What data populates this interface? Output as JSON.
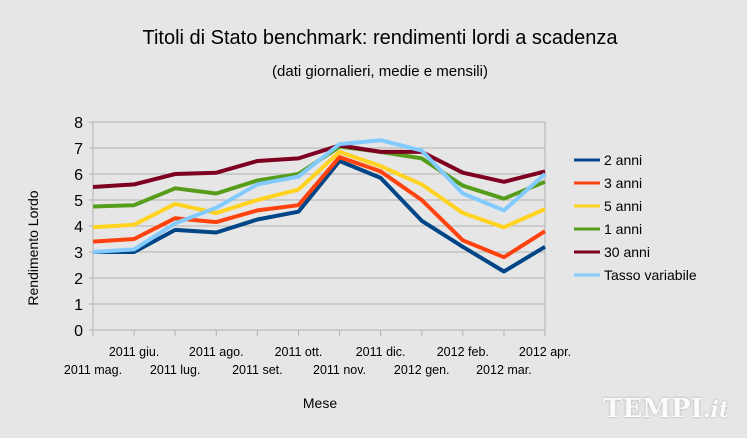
{
  "chart_data": {
    "type": "line",
    "title": "Titoli di Stato benchmark: rendimenti lordi a scadenza",
    "subtitle": "(dati giornalieri, medie e mensili)",
    "xlabel": "Mese",
    "ylabel": "Rendimento Lordo",
    "ylim": [
      0,
      8
    ],
    "yticks": [
      "0",
      "1",
      "2",
      "3",
      "4",
      "5",
      "6",
      "7",
      "8"
    ],
    "grid": true,
    "legend_position": "right",
    "categories": [
      "2011 mag.",
      "2011 giu.",
      "2011 lug.",
      "2011 ago.",
      "2011 set.",
      "2011 ott.",
      "2011 nov.",
      "2011 dic.",
      "2012 gen.",
      "2012 feb.",
      "2012 mar.",
      "2012 apr."
    ],
    "series": [
      {
        "name": "2 anni",
        "color": "#004586",
        "values": [
          3.0,
          3.0,
          3.85,
          3.75,
          4.25,
          4.55,
          6.5,
          5.85,
          4.2,
          3.2,
          2.25,
          3.2
        ]
      },
      {
        "name": "3 anni",
        "color": "#ff420e",
        "values": [
          3.4,
          3.5,
          4.3,
          4.15,
          4.6,
          4.8,
          6.65,
          6.1,
          5.0,
          3.45,
          2.8,
          3.8
        ]
      },
      {
        "name": "5 anni",
        "color": "#ffd320",
        "values": [
          3.95,
          4.05,
          4.85,
          4.5,
          5.0,
          5.4,
          6.85,
          6.3,
          5.6,
          4.5,
          3.95,
          4.65
        ]
      },
      {
        "name": "1 anni",
        "color": "#579d1c",
        "values": [
          4.75,
          4.8,
          5.45,
          5.25,
          5.75,
          6.0,
          7.05,
          6.85,
          6.6,
          5.55,
          5.05,
          5.7
        ]
      },
      {
        "name": "30 anni",
        "color": "#7e0021",
        "values": [
          5.5,
          5.6,
          6.0,
          6.05,
          6.5,
          6.6,
          7.1,
          6.85,
          6.85,
          6.05,
          5.7,
          6.1
        ]
      },
      {
        "name": "Tasso variabile",
        "color": "#83caff",
        "values": [
          3.0,
          3.1,
          4.1,
          4.7,
          5.6,
          5.9,
          7.15,
          7.3,
          6.9,
          5.25,
          4.6,
          6.0
        ]
      }
    ]
  },
  "watermark": {
    "main": "TEMPI",
    "suffix": ".it"
  }
}
